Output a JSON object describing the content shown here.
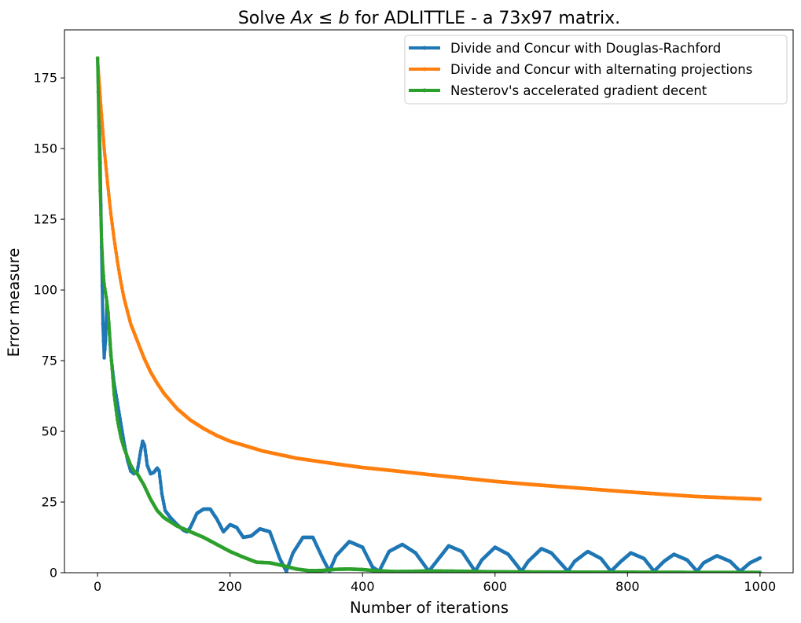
{
  "chart_data": {
    "type": "line",
    "title": "Solve Ax ≤ b for ADLITTLE - a 73x97 matrix.",
    "title_parts": {
      "prefix": "Solve ",
      "math_a": "Ax",
      "leq": " ≤ ",
      "math_b": "b",
      "suffix": " for ADLITTLE - a 73x97 matrix."
    },
    "xlabel": "Number of iterations",
    "ylabel": "Error measure",
    "xlim": [
      -50,
      1050
    ],
    "ylim": [
      0,
      192
    ],
    "xticks": [
      0,
      200,
      400,
      600,
      800,
      1000
    ],
    "xtick_labels": [
      "0",
      "200",
      "400",
      "600",
      "800",
      "1000"
    ],
    "yticks": [
      0,
      25,
      50,
      75,
      100,
      125,
      150,
      175
    ],
    "ytick_labels": [
      "0",
      "25",
      "50",
      "75",
      "100",
      "125",
      "150",
      "175"
    ],
    "grid": false,
    "legend_position": "top-right",
    "series": [
      {
        "name": "Divide and Concur with Douglas-Rachford",
        "color": "#1f77b4",
        "points": [
          [
            0,
            182
          ],
          [
            2,
            165
          ],
          [
            4,
            145
          ],
          [
            6,
            115
          ],
          [
            8,
            88
          ],
          [
            10,
            76
          ],
          [
            12,
            82
          ],
          [
            14,
            95
          ],
          [
            17,
            88
          ],
          [
            20,
            77
          ],
          [
            25,
            67
          ],
          [
            30,
            60
          ],
          [
            35,
            53
          ],
          [
            40,
            46
          ],
          [
            45,
            40
          ],
          [
            50,
            36
          ],
          [
            55,
            35
          ],
          [
            60,
            36
          ],
          [
            65,
            43
          ],
          [
            68,
            46.5
          ],
          [
            71,
            45
          ],
          [
            75,
            38
          ],
          [
            80,
            35
          ],
          [
            85,
            35.5
          ],
          [
            90,
            37
          ],
          [
            93,
            36
          ],
          [
            97,
            28
          ],
          [
            102,
            22
          ],
          [
            110,
            19.5
          ],
          [
            120,
            17
          ],
          [
            130,
            15
          ],
          [
            135,
            14.5
          ],
          [
            140,
            16
          ],
          [
            150,
            21
          ],
          [
            160,
            22.5
          ],
          [
            170,
            22.5
          ],
          [
            180,
            19
          ],
          [
            190,
            14.5
          ],
          [
            200,
            17
          ],
          [
            210,
            16
          ],
          [
            220,
            12.5
          ],
          [
            232,
            13
          ],
          [
            245,
            15.5
          ],
          [
            260,
            14.5
          ],
          [
            275,
            5
          ],
          [
            285,
            0.5
          ],
          [
            295,
            7
          ],
          [
            310,
            12.5
          ],
          [
            325,
            12.5
          ],
          [
            340,
            5
          ],
          [
            350,
            0.5
          ],
          [
            360,
            6
          ],
          [
            380,
            11
          ],
          [
            400,
            9
          ],
          [
            415,
            2
          ],
          [
            425,
            0.5
          ],
          [
            440,
            7.5
          ],
          [
            460,
            10
          ],
          [
            480,
            7
          ],
          [
            500,
            0.5
          ],
          [
            515,
            5
          ],
          [
            530,
            9.5
          ],
          [
            550,
            7.5
          ],
          [
            570,
            0.5
          ],
          [
            580,
            4.5
          ],
          [
            600,
            9
          ],
          [
            620,
            6.5
          ],
          [
            640,
            0.5
          ],
          [
            650,
            4
          ],
          [
            670,
            8.5
          ],
          [
            685,
            7
          ],
          [
            710,
            0.5
          ],
          [
            720,
            4
          ],
          [
            740,
            7.5
          ],
          [
            760,
            5
          ],
          [
            775,
            0.5
          ],
          [
            790,
            4
          ],
          [
            805,
            7
          ],
          [
            825,
            5
          ],
          [
            840,
            0.5
          ],
          [
            855,
            4
          ],
          [
            870,
            6.5
          ],
          [
            890,
            4.5
          ],
          [
            905,
            0.5
          ],
          [
            915,
            3.5
          ],
          [
            935,
            6
          ],
          [
            955,
            4
          ],
          [
            970,
            0.5
          ],
          [
            985,
            3.5
          ],
          [
            1000,
            5.2
          ]
        ]
      },
      {
        "name": "Divide and Concur with alternating projections",
        "color": "#ff7f0e",
        "points": [
          [
            0,
            182
          ],
          [
            5,
            165
          ],
          [
            10,
            150
          ],
          [
            15,
            138
          ],
          [
            20,
            127
          ],
          [
            25,
            118
          ],
          [
            30,
            110
          ],
          [
            35,
            103
          ],
          [
            40,
            97
          ],
          [
            50,
            88
          ],
          [
            60,
            82
          ],
          [
            70,
            76
          ],
          [
            80,
            71
          ],
          [
            90,
            67
          ],
          [
            100,
            63.5
          ],
          [
            120,
            58
          ],
          [
            140,
            54
          ],
          [
            160,
            51
          ],
          [
            180,
            48.5
          ],
          [
            200,
            46.5
          ],
          [
            250,
            43
          ],
          [
            300,
            40.5
          ],
          [
            350,
            38.8
          ],
          [
            400,
            37.2
          ],
          [
            450,
            36
          ],
          [
            500,
            34.7
          ],
          [
            550,
            33.5
          ],
          [
            600,
            32.3
          ],
          [
            650,
            31.3
          ],
          [
            700,
            30.4
          ],
          [
            750,
            29.5
          ],
          [
            800,
            28.6
          ],
          [
            850,
            27.8
          ],
          [
            900,
            27
          ],
          [
            950,
            26.5
          ],
          [
            1000,
            26
          ]
        ]
      },
      {
        "name": "Nesterov's accelerated gradient decent",
        "color": "#2ca02c",
        "points": [
          [
            0,
            182
          ],
          [
            2,
            158
          ],
          [
            4,
            135
          ],
          [
            6,
            118
          ],
          [
            8,
            108
          ],
          [
            10,
            102
          ],
          [
            12,
            99
          ],
          [
            14,
            96
          ],
          [
            16,
            92
          ],
          [
            18,
            85
          ],
          [
            20,
            78
          ],
          [
            25,
            63
          ],
          [
            30,
            54
          ],
          [
            35,
            48
          ],
          [
            40,
            44
          ],
          [
            45,
            41
          ],
          [
            50,
            38
          ],
          [
            55,
            36
          ],
          [
            60,
            35
          ],
          [
            70,
            31
          ],
          [
            80,
            26
          ],
          [
            90,
            22
          ],
          [
            100,
            19.5
          ],
          [
            110,
            18
          ],
          [
            120,
            16.5
          ],
          [
            140,
            14.5
          ],
          [
            160,
            12.5
          ],
          [
            180,
            10
          ],
          [
            200,
            7.5
          ],
          [
            220,
            5.5
          ],
          [
            240,
            3.7
          ],
          [
            260,
            3.5
          ],
          [
            280,
            2.5
          ],
          [
            300,
            1.3
          ],
          [
            320,
            0.7
          ],
          [
            340,
            0.8
          ],
          [
            360,
            1.2
          ],
          [
            380,
            1.3
          ],
          [
            400,
            1.1
          ],
          [
            420,
            0.7
          ],
          [
            450,
            0.4
          ],
          [
            480,
            0.5
          ],
          [
            500,
            0.6
          ],
          [
            550,
            0.5
          ],
          [
            600,
            0.3
          ],
          [
            700,
            0.2
          ],
          [
            800,
            0.15
          ],
          [
            900,
            0.1
          ],
          [
            1000,
            0.1
          ]
        ]
      }
    ]
  }
}
